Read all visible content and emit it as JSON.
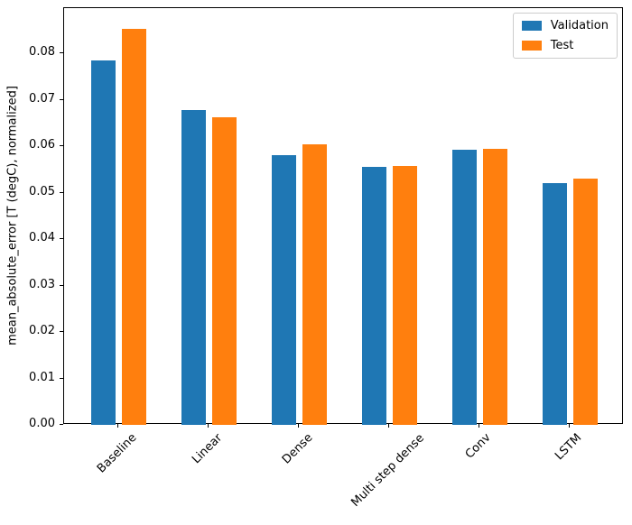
{
  "chart_data": {
    "type": "bar",
    "title": "",
    "xlabel": "",
    "ylabel": "mean_absolute_error [T (degC), normalized]",
    "categories": [
      "Baseline",
      "Linear",
      "Dense",
      "Multi step dense",
      "Conv",
      "LSTM"
    ],
    "series": [
      {
        "name": "Validation",
        "color": "#1f77b4",
        "values": [
          0.0785,
          0.0678,
          0.0581,
          0.0555,
          0.0592,
          0.052
        ]
      },
      {
        "name": "Test",
        "color": "#ff7f0e",
        "values": [
          0.0852,
          0.0663,
          0.0603,
          0.0558,
          0.0594,
          0.053
        ]
      }
    ],
    "yticks": [
      0.0,
      0.01,
      0.02,
      0.03,
      0.04,
      0.05,
      0.06,
      0.07,
      0.08
    ],
    "ytick_labels": [
      "0.00",
      "0.01",
      "0.02",
      "0.03",
      "0.04",
      "0.05",
      "0.06",
      "0.07",
      "0.08"
    ],
    "ylim": [
      0,
      0.0897
    ],
    "xlim": [
      -0.6,
      5.6
    ],
    "xtick_rotation": 45,
    "grid": false,
    "legend": {
      "position": "upper right",
      "entries": [
        "Validation",
        "Test"
      ]
    }
  }
}
